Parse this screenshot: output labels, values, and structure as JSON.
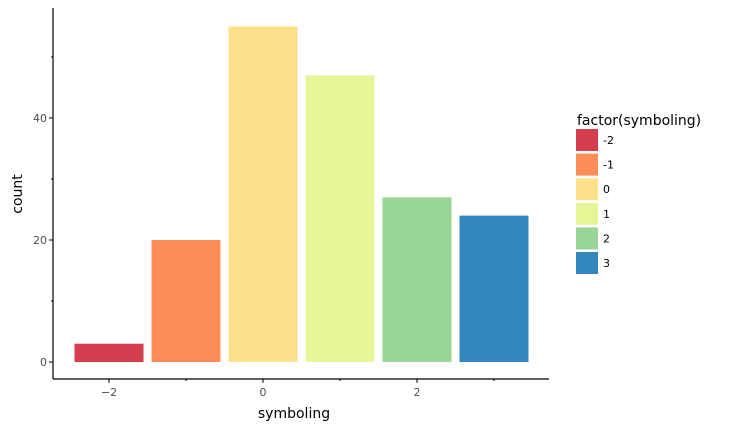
{
  "chart_data": {
    "type": "bar",
    "xlabel": "symboling",
    "ylabel": "count",
    "categories": [
      "-2",
      "-1",
      "0",
      "1",
      "2",
      "3"
    ],
    "x": [
      -2,
      -1,
      0,
      1,
      2,
      3
    ],
    "values": [
      3,
      20,
      55,
      47,
      27,
      24
    ],
    "colors": [
      "#d53e4f",
      "#fc8d59",
      "#fee08b",
      "#e6f598",
      "#99d594",
      "#3288bd"
    ],
    "xlim": [
      -2.5,
      3.5
    ],
    "ylim": [
      0,
      56
    ],
    "x_ticks": [
      -2,
      0,
      2
    ],
    "x_tick_labels": [
      "−2",
      "0",
      "2"
    ],
    "x_minor_ticks": [
      -1,
      1,
      3
    ],
    "y_ticks": [
      0,
      20,
      40
    ],
    "y_tick_labels": [
      "0",
      "20",
      "40"
    ],
    "y_minor_ticks": [
      10,
      30,
      50
    ],
    "grid": false,
    "legend": {
      "title": "factor(symboling)",
      "position": "right",
      "labels": [
        "-2",
        "-1",
        "0",
        "1",
        "2",
        "3"
      ]
    }
  }
}
